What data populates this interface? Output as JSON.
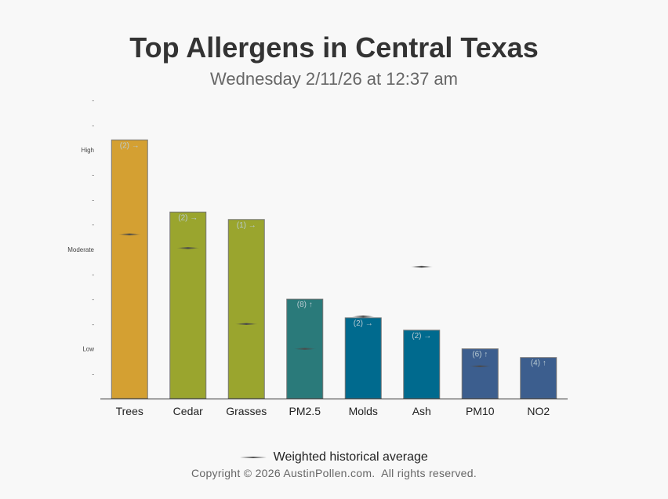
{
  "header": {
    "title": "Top Allergens in Central Texas",
    "subtitle": "Wednesday 2/11/26 at 12:37 am"
  },
  "legend": {
    "label": "Weighted historical average"
  },
  "footer": {
    "copyright": "Copyright © 2026 AustinPollen.com.  All rights reserved."
  },
  "chart_data": {
    "type": "bar",
    "categories": [
      "Trees",
      "Cedar",
      "Grasses",
      "PM2.5",
      "Molds",
      "Ash",
      "PM10",
      "NO2"
    ],
    "values": [
      10.4,
      7.5,
      7.2,
      4.0,
      3.25,
      2.75,
      2.0,
      1.65
    ],
    "historical_average": [
      6.6,
      6.05,
      3.0,
      2.0,
      3.3,
      5.3,
      1.3,
      null
    ],
    "bar_labels": [
      "(2) →",
      "(2) →",
      "(1) →",
      "(8) ↑",
      "(2) →",
      "(2) →",
      "(6) ↑",
      "(4) ↑"
    ],
    "bar_colors": [
      "#d4a032",
      "#9aa52e",
      "#9aa52e",
      "#2a7a7a",
      "#006a8e",
      "#006a8e",
      "#3c5e8e",
      "#3c5e8e"
    ],
    "y_ticks": [
      {
        "value": 1,
        "label": "-"
      },
      {
        "value": 2,
        "label": "Low"
      },
      {
        "value": 3,
        "label": "-"
      },
      {
        "value": 4,
        "label": "-"
      },
      {
        "value": 5,
        "label": "-"
      },
      {
        "value": 6,
        "label": "Moderate"
      },
      {
        "value": 7,
        "label": "-"
      },
      {
        "value": 8,
        "label": "-"
      },
      {
        "value": 9,
        "label": "-"
      },
      {
        "value": 10,
        "label": "High"
      },
      {
        "value": 11,
        "label": "-"
      },
      {
        "value": 12,
        "label": "-"
      }
    ],
    "ylim": [
      0,
      12
    ],
    "grid": false
  }
}
